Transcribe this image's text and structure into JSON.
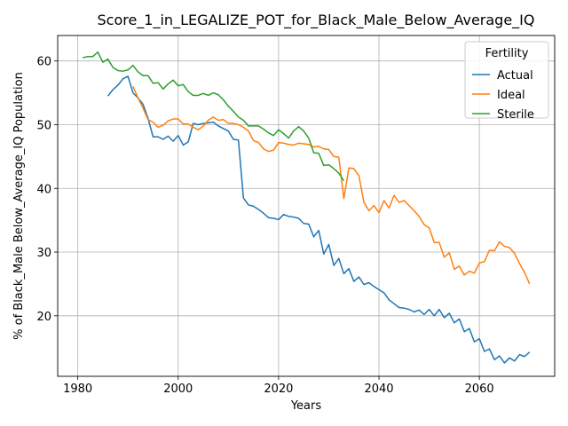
{
  "chart_data": {
    "type": "line",
    "title": "Score_1_in_LEGALIZE_POT_for_Black_Male_Below_Average_IQ",
    "xlabel": "Years",
    "ylabel": "% of Black_Male Below_Average_IQ Population",
    "xlim": [
      1976,
      2075
    ],
    "ylim": [
      10.5,
      64
    ],
    "xticks": [
      1980,
      2000,
      2020,
      2040,
      2060
    ],
    "xtick_labels": [
      "1980",
      "2000",
      "2020",
      "2040",
      "2060"
    ],
    "yticks": [
      20,
      30,
      40,
      50,
      60
    ],
    "ytick_labels": [
      "20",
      "30",
      "40",
      "50",
      "60"
    ],
    "grid": true,
    "legend": {
      "title": "Fertility",
      "placement": "top-right"
    },
    "series": [
      {
        "name": "Actual",
        "color": "#1f77b4",
        "points": [
          [
            1986,
            54.5
          ],
          [
            1987,
            55.5
          ],
          [
            1988,
            56.2
          ],
          [
            1989,
            57.2
          ],
          [
            1990,
            57.6
          ],
          [
            1991,
            55.0
          ],
          [
            1992,
            54.2
          ],
          [
            1993,
            53.2
          ],
          [
            1994,
            51.0
          ],
          [
            1995,
            48.1
          ],
          [
            1996,
            48.1
          ],
          [
            1997,
            47.7
          ],
          [
            1998,
            48.2
          ],
          [
            1999,
            47.4
          ],
          [
            2000,
            48.3
          ],
          [
            2001,
            46.8
          ],
          [
            2002,
            47.3
          ],
          [
            2003,
            50.2
          ],
          [
            2004,
            50.0
          ],
          [
            2005,
            50.2
          ],
          [
            2006,
            50.3
          ],
          [
            2007,
            50.4
          ],
          [
            2008,
            49.8
          ],
          [
            2009,
            49.4
          ],
          [
            2010,
            49.0
          ],
          [
            2011,
            47.7
          ],
          [
            2012,
            47.6
          ],
          [
            2013,
            38.5
          ],
          [
            2014,
            37.4
          ],
          [
            2015,
            37.2
          ],
          [
            2016,
            36.7
          ],
          [
            2017,
            36.1
          ],
          [
            2018,
            35.4
          ],
          [
            2019,
            35.3
          ],
          [
            2020,
            35.1
          ],
          [
            2021,
            35.9
          ],
          [
            2022,
            35.6
          ],
          [
            2023,
            35.5
          ],
          [
            2024,
            35.3
          ],
          [
            2025,
            34.5
          ],
          [
            2026,
            34.4
          ],
          [
            2027,
            32.4
          ],
          [
            2028,
            33.4
          ],
          [
            2029,
            29.7
          ],
          [
            2030,
            31.2
          ],
          [
            2031,
            27.9
          ],
          [
            2032,
            29.0
          ],
          [
            2033,
            26.6
          ],
          [
            2034,
            27.4
          ],
          [
            2035,
            25.4
          ],
          [
            2036,
            26.1
          ],
          [
            2037,
            24.9
          ],
          [
            2038,
            25.2
          ],
          [
            2039,
            24.6
          ],
          [
            2040,
            24.1
          ],
          [
            2041,
            23.6
          ],
          [
            2042,
            22.5
          ],
          [
            2043,
            21.9
          ],
          [
            2044,
            21.3
          ],
          [
            2045,
            21.2
          ],
          [
            2046,
            21.0
          ],
          [
            2047,
            20.6
          ],
          [
            2048,
            20.9
          ],
          [
            2049,
            20.2
          ],
          [
            2050,
            21.0
          ],
          [
            2051,
            20.0
          ],
          [
            2052,
            21.0
          ],
          [
            2053,
            19.7
          ],
          [
            2054,
            20.4
          ],
          [
            2055,
            18.9
          ],
          [
            2056,
            19.5
          ],
          [
            2057,
            17.5
          ],
          [
            2058,
            18.0
          ],
          [
            2059,
            15.9
          ],
          [
            2060,
            16.4
          ],
          [
            2061,
            14.4
          ],
          [
            2062,
            14.8
          ],
          [
            2063,
            13.1
          ],
          [
            2064,
            13.7
          ],
          [
            2065,
            12.6
          ],
          [
            2066,
            13.4
          ],
          [
            2067,
            12.9
          ],
          [
            2068,
            13.9
          ],
          [
            2069,
            13.6
          ],
          [
            2070,
            14.3
          ]
        ]
      },
      {
        "name": "Ideal",
        "color": "#ff7f0e",
        "points": [
          [
            1991,
            56.0
          ],
          [
            1992,
            54.2
          ],
          [
            1993,
            52.6
          ],
          [
            1994,
            50.8
          ],
          [
            1995,
            50.4
          ],
          [
            1996,
            49.6
          ],
          [
            1997,
            49.9
          ],
          [
            1998,
            50.6
          ],
          [
            1999,
            50.9
          ],
          [
            2000,
            50.9
          ],
          [
            2001,
            50.1
          ],
          [
            2002,
            50.1
          ],
          [
            2003,
            49.6
          ],
          [
            2004,
            49.2
          ],
          [
            2005,
            49.8
          ],
          [
            2006,
            50.7
          ],
          [
            2007,
            51.2
          ],
          [
            2008,
            50.7
          ],
          [
            2009,
            50.8
          ],
          [
            2010,
            50.2
          ],
          [
            2011,
            50.2
          ],
          [
            2012,
            50.0
          ],
          [
            2013,
            49.6
          ],
          [
            2014,
            49.0
          ],
          [
            2015,
            47.5
          ],
          [
            2016,
            47.2
          ],
          [
            2017,
            46.2
          ],
          [
            2018,
            45.8
          ],
          [
            2019,
            46.0
          ],
          [
            2020,
            47.2
          ],
          [
            2021,
            47.1
          ],
          [
            2022,
            46.9
          ],
          [
            2023,
            46.8
          ],
          [
            2024,
            47.1
          ],
          [
            2025,
            47.0
          ],
          [
            2026,
            46.9
          ],
          [
            2027,
            46.5
          ],
          [
            2028,
            46.6
          ],
          [
            2029,
            46.2
          ],
          [
            2030,
            46.1
          ],
          [
            2031,
            45.0
          ],
          [
            2032,
            44.9
          ],
          [
            2033,
            38.4
          ],
          [
            2034,
            43.2
          ],
          [
            2035,
            43.1
          ],
          [
            2036,
            42.0
          ],
          [
            2037,
            37.8
          ],
          [
            2038,
            36.5
          ],
          [
            2039,
            37.3
          ],
          [
            2040,
            36.2
          ],
          [
            2041,
            38.1
          ],
          [
            2042,
            36.9
          ],
          [
            2043,
            38.9
          ],
          [
            2044,
            37.8
          ],
          [
            2045,
            38.1
          ],
          [
            2046,
            37.3
          ],
          [
            2047,
            36.5
          ],
          [
            2048,
            35.6
          ],
          [
            2049,
            34.3
          ],
          [
            2050,
            33.8
          ],
          [
            2051,
            31.5
          ],
          [
            2052,
            31.5
          ],
          [
            2053,
            29.2
          ],
          [
            2054,
            29.9
          ],
          [
            2055,
            27.3
          ],
          [
            2056,
            27.8
          ],
          [
            2057,
            26.4
          ],
          [
            2058,
            27.0
          ],
          [
            2059,
            26.7
          ],
          [
            2060,
            28.3
          ],
          [
            2061,
            28.5
          ],
          [
            2062,
            30.3
          ],
          [
            2063,
            30.2
          ],
          [
            2064,
            31.6
          ],
          [
            2065,
            30.9
          ],
          [
            2066,
            30.7
          ],
          [
            2067,
            29.8
          ],
          [
            2068,
            28.2
          ],
          [
            2069,
            26.8
          ],
          [
            2070,
            25.0
          ]
        ]
      },
      {
        "name": "Sterile",
        "color": "#2ca02c",
        "points": [
          [
            1981,
            60.5
          ],
          [
            1982,
            60.7
          ],
          [
            1983,
            60.7
          ],
          [
            1984,
            61.4
          ],
          [
            1985,
            59.8
          ],
          [
            1986,
            60.3
          ],
          [
            1987,
            59.0
          ],
          [
            1988,
            58.5
          ],
          [
            1989,
            58.4
          ],
          [
            1990,
            58.6
          ],
          [
            1991,
            59.3
          ],
          [
            1992,
            58.3
          ],
          [
            1993,
            57.7
          ],
          [
            1994,
            57.7
          ],
          [
            1995,
            56.5
          ],
          [
            1996,
            56.6
          ],
          [
            1997,
            55.6
          ],
          [
            1998,
            56.4
          ],
          [
            1999,
            57.0
          ],
          [
            2000,
            56.1
          ],
          [
            2001,
            56.3
          ],
          [
            2002,
            55.2
          ],
          [
            2003,
            54.6
          ],
          [
            2004,
            54.6
          ],
          [
            2005,
            54.9
          ],
          [
            2006,
            54.6
          ],
          [
            2007,
            55.0
          ],
          [
            2008,
            54.7
          ],
          [
            2009,
            53.9
          ],
          [
            2010,
            52.9
          ],
          [
            2011,
            52.1
          ],
          [
            2012,
            51.2
          ],
          [
            2013,
            50.7
          ],
          [
            2014,
            49.8
          ],
          [
            2015,
            49.8
          ],
          [
            2016,
            49.8
          ],
          [
            2017,
            49.3
          ],
          [
            2018,
            48.7
          ],
          [
            2019,
            48.3
          ],
          [
            2020,
            49.2
          ],
          [
            2021,
            48.6
          ],
          [
            2022,
            47.9
          ],
          [
            2023,
            49.0
          ],
          [
            2024,
            49.7
          ],
          [
            2025,
            49.0
          ],
          [
            2026,
            47.9
          ],
          [
            2027,
            45.6
          ],
          [
            2028,
            45.5
          ],
          [
            2029,
            43.6
          ],
          [
            2030,
            43.7
          ],
          [
            2031,
            43.1
          ],
          [
            2032,
            42.4
          ],
          [
            2033,
            41.2
          ]
        ]
      }
    ]
  }
}
